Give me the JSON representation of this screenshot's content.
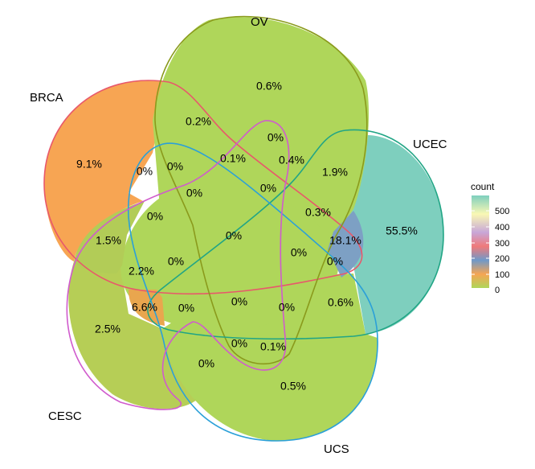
{
  "sets": [
    {
      "key": "BRCA",
      "label": "BRCA",
      "color": "#E8586B"
    },
    {
      "key": "OV",
      "label": "OV",
      "color": "#8A9A1C"
    },
    {
      "key": "UCEC",
      "label": "UCEC",
      "color": "#21A585"
    },
    {
      "key": "UCS",
      "label": "UCS",
      "color": "#2BA0D8"
    },
    {
      "key": "CESC",
      "label": "CESC",
      "color": "#D05BCD"
    }
  ],
  "region_labels": [
    {
      "id": "ov-only",
      "text": "0.6%"
    },
    {
      "id": "brca-ov",
      "text": "0.2%"
    },
    {
      "id": "brca-only",
      "text": "9.1%"
    },
    {
      "id": "ucec-only",
      "text": "55.5%"
    },
    {
      "id": "ov-ucec",
      "text": "1.9%"
    },
    {
      "id": "r-0-a",
      "text": "0%"
    },
    {
      "id": "r-0-b",
      "text": "0%"
    },
    {
      "id": "r-0-c",
      "text": "0%"
    },
    {
      "id": "r-0-1",
      "text": "0.1%"
    },
    {
      "id": "r-0-4",
      "text": "0.4%"
    },
    {
      "id": "r-0-d",
      "text": "0%"
    },
    {
      "id": "r-0-e",
      "text": "0%"
    },
    {
      "id": "r-0-3",
      "text": "0.3%"
    },
    {
      "id": "r-0-f",
      "text": "0%"
    },
    {
      "id": "brca-cesc",
      "text": "1.5%"
    },
    {
      "id": "center",
      "text": "0%"
    },
    {
      "id": "ucec-ucs",
      "text": "18.1%"
    },
    {
      "id": "r-0-g",
      "text": "0%"
    },
    {
      "id": "r-0-h",
      "text": "0%"
    },
    {
      "id": "r-2-2",
      "text": "2.2%"
    },
    {
      "id": "r-0-i",
      "text": "0%"
    },
    {
      "id": "r-6-6",
      "text": "6.6%"
    },
    {
      "id": "r-0-j",
      "text": "0%"
    },
    {
      "id": "r-0-k",
      "text": "0%"
    },
    {
      "id": "r-0-l",
      "text": "0%"
    },
    {
      "id": "r-0-6",
      "text": "0.6%"
    },
    {
      "id": "cesc-only",
      "text": "2.5%"
    },
    {
      "id": "r-0-m",
      "text": "0%"
    },
    {
      "id": "r-0-0-1",
      "text": "0.1%"
    },
    {
      "id": "r-0-n",
      "text": "0%"
    },
    {
      "id": "ucs-only",
      "text": "0.5%"
    }
  ],
  "legend": {
    "title": "count",
    "ticks": [
      "500",
      "400",
      "300",
      "200",
      "100",
      "0"
    ],
    "colors": [
      "#7ECFBE",
      "#F9F8B4",
      "#C8A6D8",
      "#F07A7A",
      "#6F99C9",
      "#F6A553",
      "#AFD65A"
    ]
  },
  "fills": {
    "base": "#AFD65A",
    "brca": "#F7A553",
    "ucec": "#7ECFBE",
    "ucec_ucs": "#7DA0C4",
    "r_6_6": "#E9A64E",
    "brca_cesc": "#B2CC57",
    "cesc": "#B6CE56"
  }
}
